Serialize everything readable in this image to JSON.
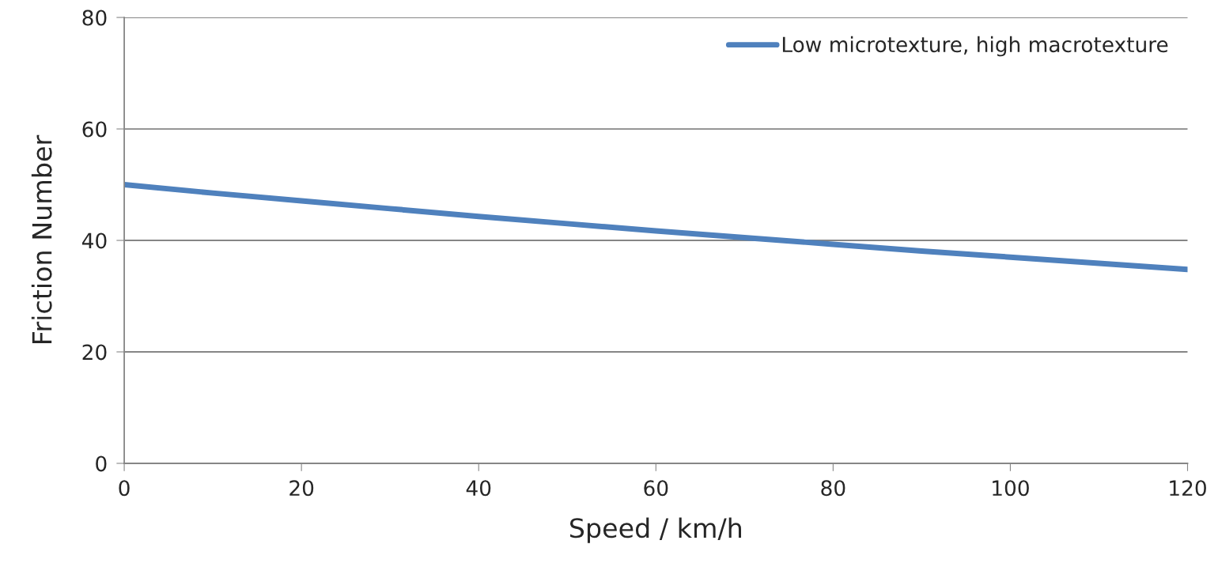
{
  "chart_data": {
    "type": "line",
    "xlabel": "Speed / km/h",
    "ylabel": "Friction Number",
    "x": [
      0,
      10,
      20,
      30,
      40,
      50,
      60,
      70,
      80,
      90,
      100,
      110,
      120
    ],
    "series": [
      {
        "name": "Low microtexture, high macrotexture",
        "color": "#4f81bd",
        "values": [
          50,
          48.5,
          47.1,
          45.7,
          44.3,
          43.0,
          41.7,
          40.5,
          39.3,
          38.1,
          37.0,
          35.9,
          34.8
        ]
      }
    ],
    "xlim": [
      0,
      120
    ],
    "xticks": [
      0,
      20,
      40,
      60,
      80,
      100,
      120
    ],
    "ylim": [
      0,
      80
    ],
    "yticks": [
      0,
      20,
      40,
      60,
      80
    ],
    "grid": "y",
    "legend": "top right",
    "marker": "none",
    "line_style": "solid"
  }
}
